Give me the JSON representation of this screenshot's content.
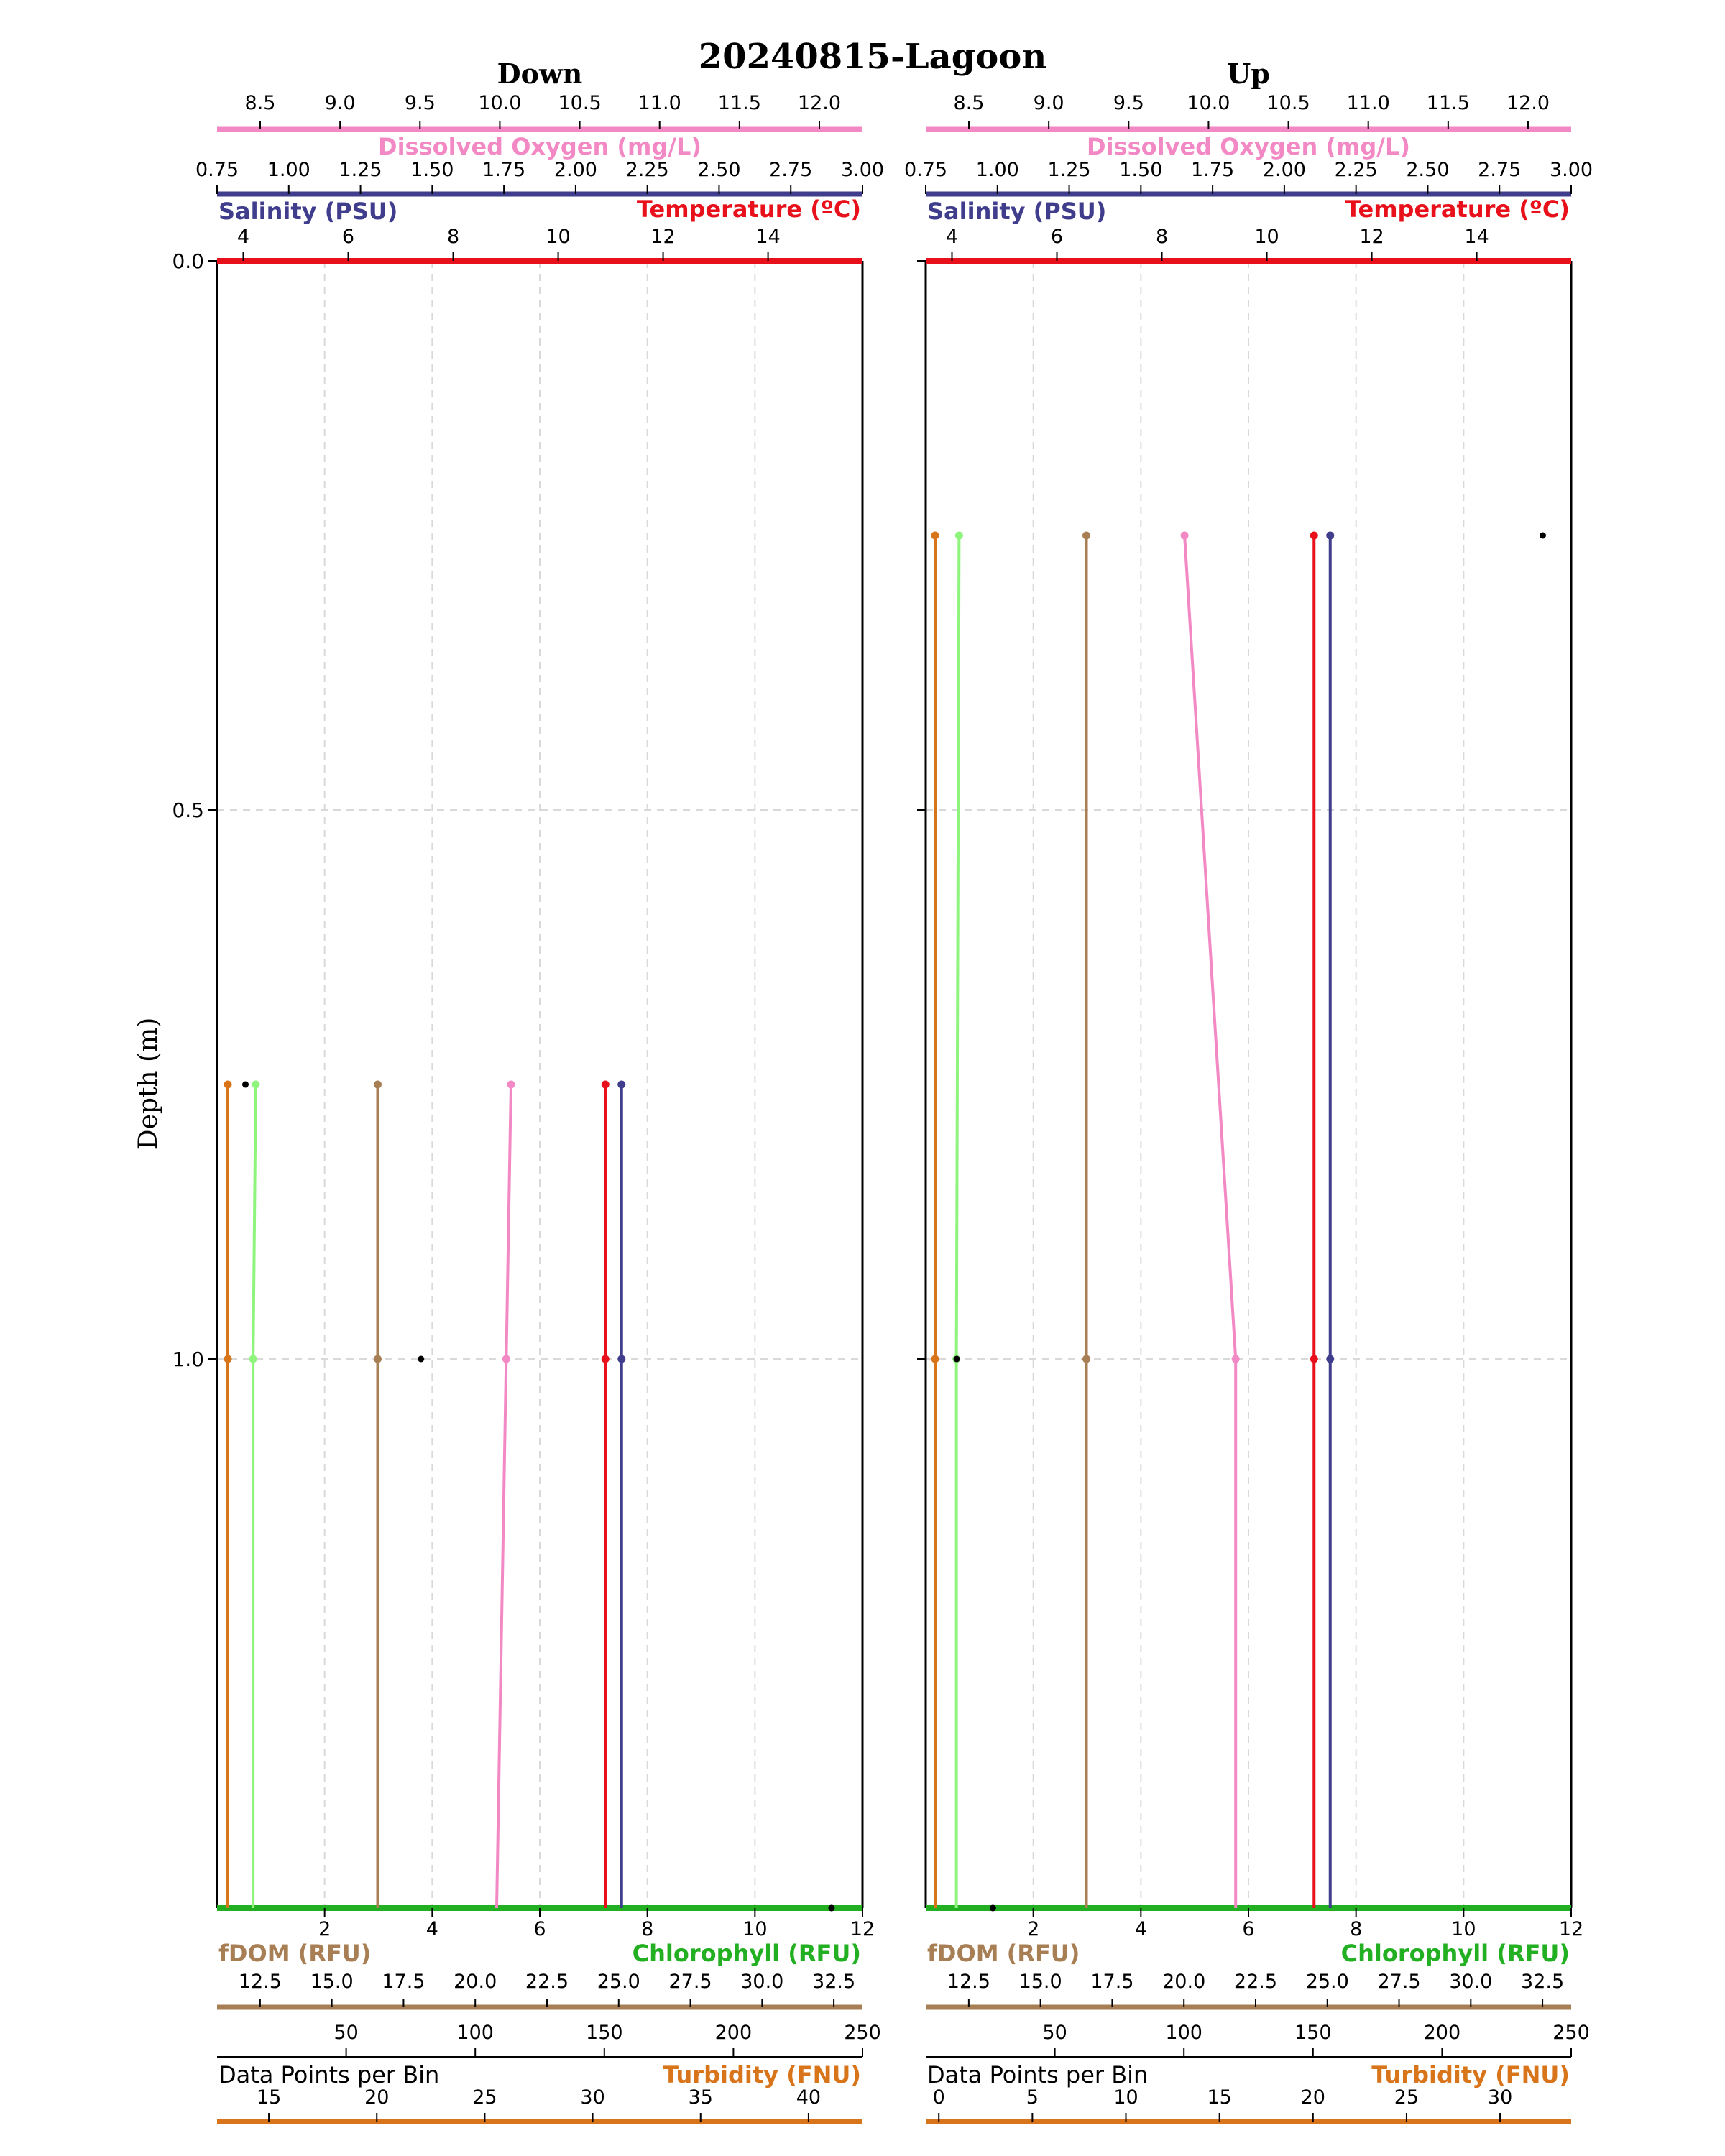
{
  "title": "20240815-Lagoon",
  "ylabel": "Depth (m)",
  "colors": {
    "dissolved_oxygen": "#f289c4",
    "salinity": "#3f3d8c",
    "temperature": "#e8101a",
    "chlorophyll": "#22b022",
    "chlorophyll_line": "#8ef47c",
    "fdom": "#a87f55",
    "turbidity": "#d8741a",
    "data_points": "#000000"
  },
  "chart_data": [
    {
      "type": "line",
      "title": "Down",
      "ylabel": "Depth (m)",
      "ylim": [
        0.0,
        1.5
      ],
      "y_inverted": true,
      "yticks": [
        0.0,
        0.5,
        1.0
      ],
      "grid": true,
      "axes": [
        {
          "key": "dissolved_oxygen",
          "label": "Dissolved Oxygen (mg/L)",
          "side": "top",
          "range": [
            8.23,
            12.27
          ],
          "ticks": [
            8.5,
            9.0,
            9.5,
            10.0,
            10.5,
            11.0,
            11.5,
            12.0
          ]
        },
        {
          "key": "salinity",
          "label": "Salinity (PSU)",
          "side": "top",
          "range": [
            0.75,
            3.0
          ],
          "ticks": [
            0.75,
            1.0,
            1.25,
            1.5,
            1.75,
            2.0,
            2.25,
            2.5,
            2.75,
            3.0
          ]
        },
        {
          "key": "temperature",
          "label": "Temperature (ºC)",
          "side": "top",
          "range": [
            3.5,
            15.8
          ],
          "ticks": [
            4,
            6,
            8,
            10,
            12,
            14
          ]
        },
        {
          "key": "chlorophyll",
          "label": "Chlorophyll (RFU)",
          "side": "bottom",
          "range": [
            0,
            12
          ],
          "ticks": [
            2,
            4,
            6,
            8,
            10,
            12
          ]
        },
        {
          "key": "fdom",
          "label": "fDOM (RFU)",
          "side": "bottom",
          "range": [
            11.0,
            33.5
          ],
          "ticks": [
            12.5,
            15.0,
            17.5,
            20.0,
            22.5,
            25.0,
            27.5,
            30.0,
            32.5
          ]
        },
        {
          "key": "data_points",
          "label": "Data Points per Bin",
          "side": "bottom",
          "range": [
            0,
            250
          ],
          "ticks": [
            50,
            100,
            150,
            200,
            250
          ]
        },
        {
          "key": "turbidity",
          "label": "Turbidity (FNU)",
          "side": "bottom",
          "range": [
            12.6,
            42.5
          ],
          "ticks": [
            15,
            20,
            25,
            30,
            35,
            40
          ]
        }
      ],
      "series": [
        {
          "key": "turbidity",
          "depth": [
            0.75,
            1.0,
            1.5
          ],
          "values": [
            13.1,
            13.1,
            13.1
          ]
        },
        {
          "key": "chlorophyll",
          "depth": [
            0.75,
            1.0,
            1.5
          ],
          "values": [
            0.72,
            0.67,
            0.67
          ]
        },
        {
          "key": "fdom",
          "depth": [
            0.75,
            1.0,
            1.5
          ],
          "values": [
            16.6,
            16.6,
            16.6
          ]
        },
        {
          "key": "dissolved_oxygen",
          "depth": [
            0.75,
            1.0,
            1.5
          ],
          "values": [
            10.07,
            10.04,
            9.98
          ]
        },
        {
          "key": "temperature",
          "depth": [
            0.75,
            1.0,
            1.5
          ],
          "values": [
            10.9,
            10.9,
            10.9
          ]
        },
        {
          "key": "salinity",
          "depth": [
            0.75,
            1.0,
            1.5
          ],
          "values": [
            2.16,
            2.16,
            2.16
          ]
        }
      ],
      "data_points": {
        "depth": [
          0.75,
          1.0,
          1.5
        ],
        "values": [
          11,
          79,
          238
        ]
      }
    },
    {
      "type": "line",
      "title": "Up",
      "ylabel": "",
      "ylim": [
        0.0,
        1.5
      ],
      "y_inverted": true,
      "yticks": [
        0.0,
        0.5,
        1.0
      ],
      "grid": true,
      "axes": [
        {
          "key": "dissolved_oxygen",
          "label": "Dissolved Oxygen (mg/L)",
          "side": "top",
          "range": [
            8.23,
            12.27
          ],
          "ticks": [
            8.5,
            9.0,
            9.5,
            10.0,
            10.5,
            11.0,
            11.5,
            12.0
          ]
        },
        {
          "key": "salinity",
          "label": "Salinity (PSU)",
          "side": "top",
          "range": [
            0.75,
            3.0
          ],
          "ticks": [
            0.75,
            1.0,
            1.25,
            1.5,
            1.75,
            2.0,
            2.25,
            2.5,
            2.75,
            3.0
          ]
        },
        {
          "key": "temperature",
          "label": "Temperature (ºC)",
          "side": "top",
          "range": [
            3.5,
            15.8
          ],
          "ticks": [
            4,
            6,
            8,
            10,
            12,
            14
          ]
        },
        {
          "key": "chlorophyll",
          "label": "Chlorophyll (RFU)",
          "side": "bottom",
          "range": [
            0,
            12
          ],
          "ticks": [
            2,
            4,
            6,
            8,
            10,
            12
          ]
        },
        {
          "key": "fdom",
          "label": "fDOM (RFU)",
          "side": "bottom",
          "range": [
            11.0,
            33.5
          ],
          "ticks": [
            12.5,
            15.0,
            17.5,
            20.0,
            22.5,
            25.0,
            27.5,
            30.0,
            32.5
          ]
        },
        {
          "key": "data_points",
          "label": "Data Points per Bin",
          "side": "bottom",
          "range": [
            0,
            250
          ],
          "ticks": [
            50,
            100,
            150,
            200,
            250
          ]
        },
        {
          "key": "turbidity",
          "label": "Turbidity (FNU)",
          "side": "bottom",
          "range": [
            -0.7,
            33.8
          ],
          "ticks": [
            0,
            5,
            10,
            15,
            20,
            25,
            30
          ]
        }
      ],
      "series": [
        {
          "key": "turbidity",
          "depth": [
            0.25,
            1.0,
            1.5
          ],
          "values": [
            -0.2,
            -0.2,
            -0.2
          ]
        },
        {
          "key": "chlorophyll",
          "depth": [
            0.25,
            1.0,
            1.5
          ],
          "values": [
            0.62,
            0.57,
            0.57
          ]
        },
        {
          "key": "fdom",
          "depth": [
            0.25,
            1.0,
            1.5
          ],
          "values": [
            16.6,
            16.6,
            16.6
          ]
        },
        {
          "key": "dissolved_oxygen",
          "depth": [
            0.25,
            1.0,
            1.5
          ],
          "values": [
            9.85,
            10.17,
            10.17
          ]
        },
        {
          "key": "temperature",
          "depth": [
            0.25,
            1.0,
            1.5
          ],
          "values": [
            10.9,
            10.9,
            10.9
          ]
        },
        {
          "key": "salinity",
          "depth": [
            0.25,
            1.0,
            1.5
          ],
          "values": [
            2.16,
            2.16,
            2.16
          ]
        }
      ],
      "data_points": {
        "depth": [
          0.25,
          1.0,
          1.5
        ],
        "values": [
          239,
          12,
          26
        ]
      }
    }
  ]
}
